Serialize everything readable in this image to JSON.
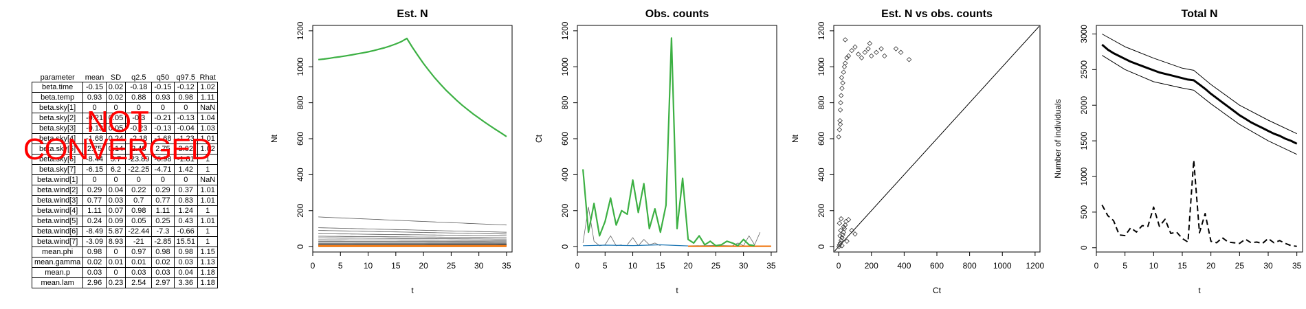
{
  "summary_table": {
    "headers": [
      "parameter",
      "mean",
      "SD",
      "q2.5",
      "q50",
      "q97.5",
      "Rhat"
    ],
    "rows": [
      [
        "beta.time",
        "-0.15",
        "0.02",
        "-0.18",
        "-0.15",
        "-0.12",
        "1.02"
      ],
      [
        "beta.temp",
        "0.93",
        "0.02",
        "0.88",
        "0.93",
        "0.98",
        "1.11"
      ],
      [
        "beta.sky[1]",
        "0",
        "0",
        "0",
        "0",
        "0",
        "NaN"
      ],
      [
        "beta.sky[2]",
        "-0.21",
        "0.05",
        "-0.3",
        "-0.21",
        "-0.13",
        "1.04"
      ],
      [
        "beta.sky[3]",
        "-0.13",
        "0.05",
        "-0.23",
        "-0.13",
        "-0.04",
        "1.03"
      ],
      [
        "beta.sky[4]",
        "-1.68",
        "0.24",
        "-2.18",
        "-1.68",
        "-1.23",
        "1.01"
      ],
      [
        "beta.sky[5]",
        "2.75",
        "0.14",
        "2.48",
        "2.75",
        "3.02",
        "1.02"
      ],
      [
        "beta.sky[6]",
        "-8.44",
        "5.7",
        "-23.89",
        "-6.98",
        "-1.81",
        "1"
      ],
      [
        "beta.sky[7]",
        "-6.15",
        "6.2",
        "-22.25",
        "-4.71",
        "1.42",
        "1"
      ],
      [
        "beta.wind[1]",
        "0",
        "0",
        "0",
        "0",
        "0",
        "NaN"
      ],
      [
        "beta.wind[2]",
        "0.29",
        "0.04",
        "0.22",
        "0.29",
        "0.37",
        "1.01"
      ],
      [
        "beta.wind[3]",
        "0.77",
        "0.03",
        "0.7",
        "0.77",
        "0.83",
        "1.01"
      ],
      [
        "beta.wind[4]",
        "1.11",
        "0.07",
        "0.98",
        "1.11",
        "1.24",
        "1"
      ],
      [
        "beta.wind[5]",
        "0.24",
        "0.09",
        "0.05",
        "0.25",
        "0.43",
        "1.01"
      ],
      [
        "beta.wind[6]",
        "-8.49",
        "5.87",
        "-22.44",
        "-7.3",
        "-0.66",
        "1"
      ],
      [
        "beta.wind[7]",
        "-3.09",
        "8.93",
        "-21",
        "-2.85",
        "15.51",
        "1"
      ],
      [
        "mean.phi",
        "0.98",
        "0",
        "0.97",
        "0.98",
        "0.98",
        "1.15"
      ],
      [
        "mean.gamma",
        "0.02",
        "0.01",
        "0.01",
        "0.02",
        "0.03",
        "1.13"
      ],
      [
        "mean.p",
        "0.03",
        "0",
        "0.03",
        "0.03",
        "0.04",
        "1.18"
      ],
      [
        "mean.lam",
        "2.96",
        "0.23",
        "2.54",
        "2.97",
        "3.36",
        "1.18"
      ]
    ]
  },
  "stamp": {
    "line1": "NOT",
    "line2": "CONVERGED",
    "color": "#ff0000"
  },
  "chart_data": [
    {
      "type": "line",
      "title": "Est. N",
      "xlabel": "t",
      "ylabel": "Nt",
      "xlim": [
        0,
        36
      ],
      "ylim": [
        -30,
        1230
      ],
      "xticks": [
        0,
        5,
        10,
        15,
        20,
        25,
        30,
        35
      ],
      "yticks": [
        0,
        200,
        400,
        600,
        800,
        1000,
        1200
      ],
      "highlight_series": {
        "color": "#3cb043",
        "x": [
          1,
          2,
          3,
          4,
          5,
          6,
          7,
          8,
          9,
          10,
          11,
          12,
          13,
          14,
          15,
          16,
          17,
          18,
          19,
          20,
          21,
          22,
          23,
          24,
          25,
          26,
          27,
          28,
          29,
          30,
          31,
          32,
          33,
          34,
          35
        ],
        "values": [
          1040,
          1043,
          1047,
          1052,
          1056,
          1061,
          1066,
          1072,
          1077,
          1083,
          1090,
          1098,
          1106,
          1116,
          1127,
          1140,
          1158,
          1108,
          1062,
          1018,
          978,
          940,
          905,
          872,
          842,
          813,
          786,
          761,
          737,
          715,
          693,
          672,
          652,
          632,
          612
        ]
      },
      "gray_series_endpoints": [
        {
          "start": 165,
          "end": 120
        },
        {
          "start": 105,
          "end": 80
        },
        {
          "start": 90,
          "end": 70
        },
        {
          "start": 72,
          "end": 60
        },
        {
          "start": 58,
          "end": 50
        },
        {
          "start": 48,
          "end": 42
        },
        {
          "start": 38,
          "end": 34
        },
        {
          "start": 30,
          "end": 28
        },
        {
          "start": 24,
          "end": 22
        },
        {
          "start": 18,
          "end": 18
        },
        {
          "start": 12,
          "end": 13
        }
      ],
      "flat_series": {
        "color": "#f07c1a",
        "value": 3
      }
    },
    {
      "type": "line",
      "title": "Obs. counts",
      "xlabel": "t",
      "ylabel": "Ct",
      "xlim": [
        0,
        36
      ],
      "ylim": [
        -30,
        1230
      ],
      "xticks": [
        0,
        5,
        10,
        15,
        20,
        25,
        30,
        35
      ],
      "yticks": [
        0,
        200,
        400,
        600,
        800,
        1000,
        1200
      ],
      "highlight_series": {
        "color": "#3cb043",
        "x": [
          1,
          2,
          3,
          4,
          5,
          6,
          7,
          8,
          9,
          10,
          11,
          12,
          13,
          14,
          15,
          16,
          17,
          18,
          19,
          20,
          21,
          22,
          23,
          24,
          25,
          26,
          27,
          28,
          29,
          30,
          31,
          32
        ],
        "values": [
          430,
          80,
          240,
          60,
          140,
          270,
          120,
          200,
          180,
          370,
          190,
          350,
          100,
          210,
          80,
          230,
          1160,
          100,
          380,
          40,
          20,
          60,
          10,
          30,
          5,
          10,
          30,
          20,
          5,
          40,
          10,
          5
        ]
      },
      "gray_series": [
        {
          "x": [
            1,
            2,
            3,
            4,
            5,
            6,
            7,
            8
          ],
          "values": [
            20,
            220,
            30,
            5,
            10,
            60,
            5,
            10
          ]
        },
        {
          "x": [
            9,
            10,
            11,
            12,
            13,
            14,
            15
          ],
          "values": [
            10,
            50,
            5,
            40,
            10,
            20,
            5
          ]
        },
        {
          "x": [
            28,
            29,
            30,
            31,
            32,
            33
          ],
          "values": [
            5,
            20,
            5,
            60,
            10,
            80
          ]
        }
      ],
      "blue_series": {
        "color": "#1f77b4",
        "x": [
          1,
          5,
          10,
          15,
          20,
          25,
          30
        ],
        "values": [
          5,
          8,
          6,
          10,
          4,
          6,
          3
        ]
      },
      "orange_series": {
        "color": "#f07c1a",
        "x": [
          20,
          35
        ],
        "values": [
          2,
          2
        ]
      }
    },
    {
      "type": "scatter",
      "title": "Est. N vs obs. counts",
      "xlabel": "Ct",
      "ylabel": "Nt",
      "xlim": [
        -30,
        1230
      ],
      "ylim": [
        -30,
        1230
      ],
      "xticks": [
        0,
        200,
        400,
        600,
        800,
        1000,
        1200
      ],
      "yticks": [
        0,
        200,
        400,
        600,
        800,
        1000,
        1200
      ],
      "reference_line": "y = x",
      "points": [
        [
          0,
          610
        ],
        [
          5,
          650
        ],
        [
          8,
          700
        ],
        [
          10,
          760
        ],
        [
          12,
          800
        ],
        [
          15,
          840
        ],
        [
          20,
          880
        ],
        [
          25,
          910
        ],
        [
          18,
          940
        ],
        [
          30,
          970
        ],
        [
          35,
          1000
        ],
        [
          40,
          1020
        ],
        [
          50,
          1050
        ],
        [
          60,
          1060
        ],
        [
          80,
          1090
        ],
        [
          100,
          1110
        ],
        [
          120,
          1070
        ],
        [
          140,
          1050
        ],
        [
          160,
          1080
        ],
        [
          180,
          1100
        ],
        [
          190,
          1130
        ],
        [
          200,
          1060
        ],
        [
          230,
          1080
        ],
        [
          260,
          1100
        ],
        [
          280,
          1060
        ],
        [
          350,
          1100
        ],
        [
          380,
          1080
        ],
        [
          430,
          1040
        ],
        [
          40,
          1150
        ],
        [
          10,
          680
        ],
        [
          2,
          0
        ],
        [
          5,
          10
        ],
        [
          10,
          20
        ],
        [
          15,
          35
        ],
        [
          20,
          50
        ],
        [
          25,
          65
        ],
        [
          30,
          80
        ],
        [
          35,
          100
        ],
        [
          40,
          120
        ],
        [
          45,
          140
        ],
        [
          60,
          150
        ],
        [
          80,
          90
        ],
        [
          100,
          70
        ],
        [
          5,
          130
        ],
        [
          15,
          155
        ],
        [
          30,
          110
        ],
        [
          50,
          30
        ],
        [
          20,
          5
        ],
        [
          8,
          60
        ],
        [
          12,
          90
        ]
      ]
    },
    {
      "type": "line",
      "title": "Total N",
      "xlabel": "t",
      "ylabel": "Number of individuals",
      "xlim": [
        0,
        36
      ],
      "ylim": [
        -60,
        3120
      ],
      "xticks": [
        0,
        5,
        10,
        15,
        20,
        25,
        30,
        35
      ],
      "yticks": [
        0,
        500,
        1000,
        1500,
        2000,
        2500,
        3000
      ],
      "series": [
        {
          "name": "mean",
          "style": "bold",
          "x": [
            1,
            2,
            3,
            4,
            5,
            6,
            7,
            8,
            9,
            10,
            11,
            12,
            13,
            14,
            15,
            16,
            17,
            18,
            19,
            20,
            21,
            22,
            23,
            24,
            25,
            26,
            27,
            28,
            29,
            30,
            31,
            32,
            33,
            34,
            35
          ],
          "values": [
            2850,
            2780,
            2730,
            2690,
            2650,
            2610,
            2580,
            2550,
            2520,
            2490,
            2460,
            2440,
            2420,
            2400,
            2380,
            2360,
            2350,
            2290,
            2230,
            2160,
            2100,
            2040,
            1980,
            1920,
            1860,
            1810,
            1760,
            1720,
            1680,
            1640,
            1600,
            1570,
            1530,
            1500,
            1460
          ]
        },
        {
          "name": "upper",
          "style": "thin",
          "x": [
            1,
            5,
            10,
            15,
            17,
            20,
            25,
            30,
            35
          ],
          "values": [
            3000,
            2820,
            2660,
            2520,
            2490,
            2290,
            2000,
            1790,
            1600
          ]
        },
        {
          "name": "lower",
          "style": "thin",
          "x": [
            1,
            5,
            10,
            15,
            17,
            20,
            25,
            30,
            35
          ],
          "values": [
            2700,
            2500,
            2330,
            2240,
            2210,
            2020,
            1730,
            1500,
            1310
          ]
        },
        {
          "name": "counts",
          "style": "dashed",
          "x": [
            1,
            2,
            3,
            4,
            5,
            6,
            7,
            8,
            9,
            10,
            11,
            12,
            13,
            14,
            15,
            16,
            17,
            18,
            19,
            20,
            21,
            22,
            23,
            24,
            25,
            26,
            27,
            28,
            29,
            30,
            31,
            32,
            33,
            34,
            35
          ],
          "values": [
            600,
            450,
            380,
            180,
            170,
            280,
            220,
            310,
            300,
            570,
            300,
            400,
            200,
            220,
            130,
            80,
            1230,
            210,
            480,
            90,
            70,
            140,
            80,
            70,
            60,
            120,
            70,
            80,
            60,
            130,
            70,
            100,
            60,
            30,
            20
          ]
        }
      ]
    }
  ]
}
